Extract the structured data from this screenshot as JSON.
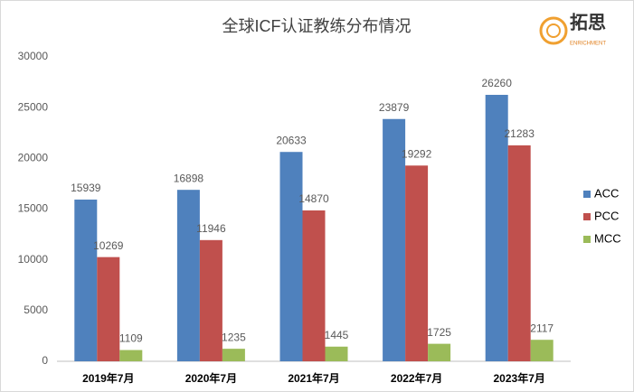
{
  "chart_data": {
    "type": "bar",
    "title": "全球ICF认证教练分布情况",
    "categories": [
      "2019年7月",
      "2020年7月",
      "2021年7月",
      "2022年7月",
      "2023年7月"
    ],
    "series": [
      {
        "name": "ACC",
        "color": "#4f81bd",
        "values": [
          15939,
          16898,
          20633,
          23879,
          26260
        ]
      },
      {
        "name": "PCC",
        "color": "#c0504d",
        "values": [
          10269,
          11946,
          14870,
          19292,
          21283
        ]
      },
      {
        "name": "MCC",
        "color": "#9bbb59",
        "values": [
          1109,
          1235,
          1445,
          1725,
          2117
        ]
      }
    ],
    "ylim": [
      0,
      30000
    ],
    "yticks": [
      0,
      5000,
      10000,
      15000,
      20000,
      25000,
      30000
    ],
    "grid": false,
    "legend": "right"
  },
  "logo": {
    "name": "拓思",
    "subtitle": "ENRICHMENT"
  }
}
